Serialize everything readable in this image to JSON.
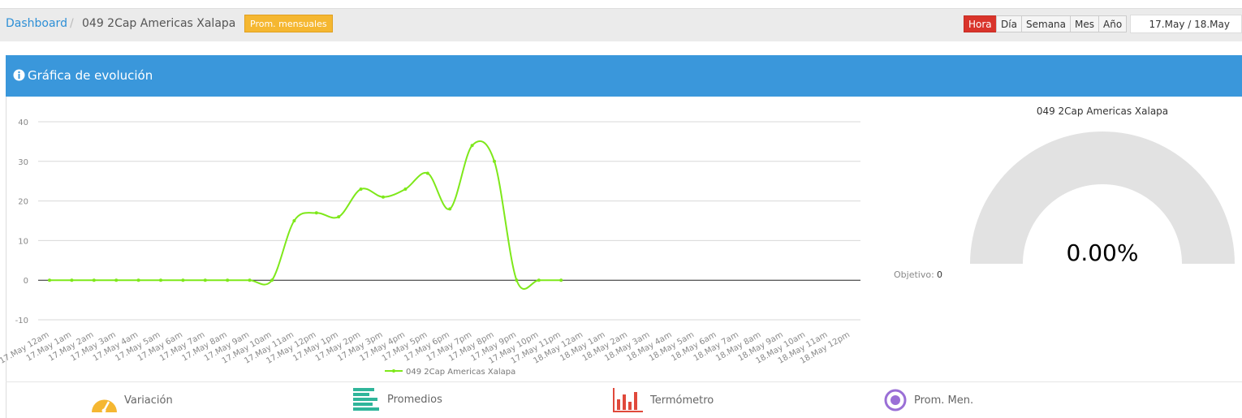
{
  "header": {
    "breadcrumb": [
      "Dashboard",
      "049 2Cap Americas Xalapa"
    ],
    "badge": "Prom. mensuales",
    "periods": [
      "Hora",
      "Día",
      "Semana",
      "Mes",
      "Año"
    ],
    "active_period": "Hora",
    "date_range": "17.May / 18.May"
  },
  "panel": {
    "title": "Gráfica de evolución"
  },
  "chart_data": {
    "type": "line",
    "categories": [
      "17.May 12am",
      "17.May 1am",
      "17.May 2am",
      "17.May 3am",
      "17.May 4am",
      "17.May 5am",
      "17.May 6am",
      "17.May 7am",
      "17.May 8am",
      "17.May 9am",
      "17.May 10am",
      "17.May 11am",
      "17.May 12pm",
      "17.May 1pm",
      "17.May 2pm",
      "17.May 3pm",
      "17.May 4pm",
      "17.May 5pm",
      "17.May 6pm",
      "17.May 7pm",
      "17.May 8pm",
      "17.May 9pm",
      "17.May 10pm",
      "17.May 11pm",
      "18.May 12am",
      "18.May 1am",
      "18.May 2am",
      "18.May 3am",
      "18.May 4am",
      "18.May 5am",
      "18.May 6am",
      "18.May 7am",
      "18.May 8am",
      "18.May 9am",
      "18.May 10am",
      "18.May 11am",
      "18.May 12pm"
    ],
    "series": [
      {
        "name": "049 2Cap Americas Xalapa",
        "color": "#7ee81a",
        "values": [
          0,
          0,
          0,
          0,
          0,
          0,
          0,
          0,
          0,
          0,
          0,
          15,
          17,
          16,
          23,
          21,
          23,
          27,
          18,
          34,
          30,
          0,
          0,
          0,
          null,
          null,
          null,
          null,
          null,
          null,
          null,
          null,
          null,
          null,
          null,
          null,
          null
        ]
      }
    ],
    "ylim": [
      -10,
      40
    ],
    "yticks": [
      -10,
      0,
      10,
      20,
      30,
      40
    ],
    "grid": true,
    "legend": "bottom"
  },
  "gauge": {
    "title": "049 2Cap Americas Xalapa",
    "value": 0,
    "value_label": "0.00%",
    "objective_label": "Objetivo:",
    "objective": 0
  },
  "tabs": [
    "Variación",
    "Promedios",
    "Termómetro",
    "Prom. Men."
  ]
}
